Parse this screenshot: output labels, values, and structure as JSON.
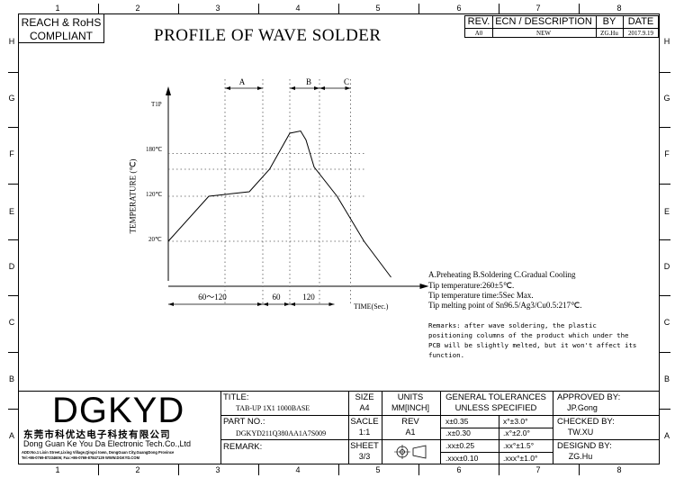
{
  "compliance": {
    "line1": "REACH & RoHS",
    "line2": "COMPLIANT"
  },
  "title": "PROFILE OF WAVE SOLDER",
  "grid": {
    "columns": [
      "1",
      "2",
      "3",
      "4",
      "5",
      "6",
      "7",
      "8"
    ],
    "rows": [
      "H",
      "G",
      "F",
      "E",
      "D",
      "C",
      "B",
      "A"
    ]
  },
  "revision": {
    "headers": {
      "rev": "REV.",
      "ecn": "ECN / DESCRIPTION",
      "by": "BY",
      "date": "DATE"
    },
    "row": {
      "rev": "A0",
      "ecn": "NEW",
      "by": "ZG.Hu",
      "date": "2017.9.19"
    }
  },
  "chart_data": {
    "type": "line",
    "title": "",
    "xlabel": "TIME(Sec.)",
    "ylabel": "TEMPERATURE (℃)",
    "y_ticks": [
      "20℃",
      "120℃",
      "180℃",
      "T1P"
    ],
    "x": [
      0,
      30,
      60,
      75,
      90,
      98,
      102,
      108,
      125,
      145,
      165
    ],
    "y": [
      20,
      120,
      130,
      180,
      260,
      265,
      245,
      185,
      120,
      20,
      -60
    ],
    "zones": [
      {
        "label": "A",
        "name": "Preheating"
      },
      {
        "label": "B",
        "name": "Soldering"
      },
      {
        "label": "C",
        "name": "Gradual Cooling"
      }
    ],
    "time_segments": [
      "60～120",
      "60",
      "120"
    ]
  },
  "notes": {
    "legend": "A.Preheating  B.Soldering  C.Gradual Cooling",
    "tip_temp": "Tip temperature:260±5℃.",
    "tip_time": "Tip temperature time:5Sec Max.",
    "tip_melting": "Tip melting point of Sn96.5/Ag3/Cu0.5:217℃.",
    "remarks": [
      "Remarks: after wave soldering, the plastic",
      "positioning columns of the product  which under the",
      "PCB will be slightly melted, but it won't affect its",
      "function."
    ]
  },
  "company": {
    "logo": "DGKYD",
    "name_cn": "东莞市科优达电子科技有限公司",
    "name_en": "Dong Guan Ke You Da Electronic Tech.Co.,Ltd",
    "address": "ADD:No.1 Lixin Street,Lixing Village,Qingxi town, DongGuan City,GuangDong Province",
    "contact": "Tel:+86-0769-87334606; Fax:+86-0769-87847129  WWW.DGKYD.COM"
  },
  "titleblock": {
    "title_label": "TITLE:",
    "title_value": "TAB-UP 1X1 1000BASE",
    "partno_label": "PART NO.:",
    "partno_value": "DGKYD211Q380AA1A7S009",
    "remark_label": "REMARK:",
    "size_label": "SIZE",
    "size_value": "A4",
    "units_label": "UNITS",
    "units_value": "MM[INCH]",
    "scale_label": "SACLE",
    "scale_value": "1:1",
    "rev_label": "REV",
    "rev_value": "A1",
    "sheet_label": "SHEET",
    "sheet_value": "3/3",
    "tol_line1": "GENERAL TOLERANCES",
    "tol_line2": "UNLESS SPECIFIED",
    "tolerances": [
      {
        "lin": "x±0.35",
        "ang": "x°±3.0°"
      },
      {
        "lin": ".x±0.30",
        "ang": ".x°±2.0°"
      },
      {
        "lin": ".xx±0.25",
        "ang": ".xx°±1.5°"
      },
      {
        "lin": ".xxx±0.10",
        "ang": ".xxx°±1.0°"
      }
    ],
    "approved_label": "APPROVED BY:",
    "approved_value": "JP.Gong",
    "checked_label": "CHECKED BY:",
    "checked_value": "TW.XU",
    "designed_label": "DESIGND BY:",
    "designed_value": "ZG.Hu"
  }
}
